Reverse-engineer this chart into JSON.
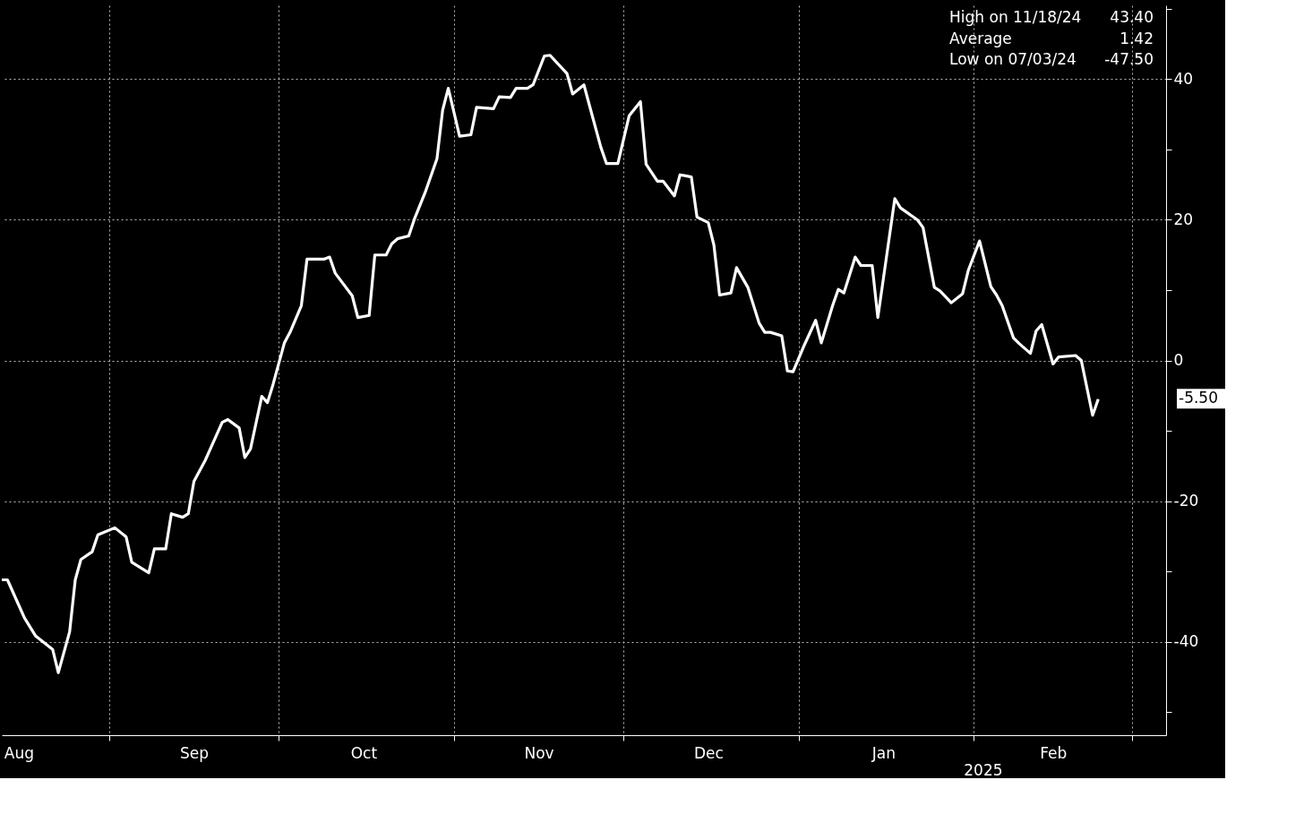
{
  "chart_data": {
    "type": "line",
    "x": [
      "2024-08-13",
      "2024-08-14",
      "2024-08-16",
      "2024-08-17",
      "2024-08-19",
      "2024-08-22",
      "2024-08-23",
      "2024-08-25",
      "2024-08-26",
      "2024-08-27",
      "2024-08-29",
      "2024-08-30",
      "2024-09-02",
      "2024-09-04",
      "2024-09-05",
      "2024-09-08",
      "2024-09-09",
      "2024-09-11",
      "2024-09-12",
      "2024-09-14",
      "2024-09-15",
      "2024-09-16",
      "2024-09-18",
      "2024-09-19",
      "2024-09-21",
      "2024-09-22",
      "2024-09-24",
      "2024-09-25",
      "2024-09-26",
      "2024-09-28",
      "2024-09-29",
      "2024-09-30",
      "2024-10-02",
      "2024-10-03",
      "2024-10-05",
      "2024-10-06",
      "2024-10-09",
      "2024-10-10",
      "2024-10-11",
      "2024-10-14",
      "2024-10-15",
      "2024-10-17",
      "2024-10-18",
      "2024-10-20",
      "2024-10-21",
      "2024-10-22",
      "2024-10-24",
      "2024-10-25",
      "2024-10-27",
      "2024-10-29",
      "2024-10-30",
      "2024-10-31",
      "2024-11-02",
      "2024-11-04",
      "2024-11-05",
      "2024-11-08",
      "2024-11-09",
      "2024-11-11",
      "2024-11-12",
      "2024-11-14",
      "2024-11-15",
      "2024-11-17",
      "2024-11-18",
      "2024-11-21",
      "2024-11-22",
      "2024-11-24",
      "2024-11-25",
      "2024-11-27",
      "2024-11-28",
      "2024-11-30",
      "2024-12-02",
      "2024-12-04",
      "2024-12-05",
      "2024-12-07",
      "2024-12-08",
      "2024-12-10",
      "2024-12-11",
      "2024-12-13",
      "2024-12-14",
      "2024-12-16",
      "2024-12-17",
      "2024-12-18",
      "2024-12-20",
      "2024-12-21",
      "2024-12-23",
      "2024-12-25",
      "2024-12-26",
      "2024-12-27",
      "2024-12-29",
      "2024-12-30",
      "2024-12-31",
      "2025-01-02",
      "2025-01-04",
      "2025-01-05",
      "2025-01-07",
      "2025-01-08",
      "2025-01-09",
      "2025-01-11",
      "2025-01-12",
      "2025-01-14",
      "2025-01-15",
      "2025-01-18",
      "2025-01-19",
      "2025-01-22",
      "2025-01-23",
      "2025-01-25",
      "2025-01-26",
      "2025-01-28",
      "2025-01-30",
      "2025-01-31",
      "2025-02-02",
      "2025-02-04",
      "2025-02-05",
      "2025-02-06",
      "2025-02-08",
      "2025-02-09",
      "2025-02-11",
      "2025-02-12",
      "2025-02-13",
      "2025-02-15",
      "2025-02-16",
      "2025-02-19",
      "2025-02-20",
      "2025-02-22",
      "2025-02-23"
    ],
    "series": [
      {
        "color": "#ffffff",
        "values": [
          -31.2,
          -31.2,
          -34.8,
          -36.6,
          -39.2,
          -41.1,
          -44.4,
          -38.6,
          -31.2,
          -28.3,
          -27.2,
          -24.8,
          -23.8,
          -25.1,
          -28.7,
          -30.2,
          -26.8,
          -26.8,
          -21.8,
          -22.3,
          -21.8,
          -17.2,
          -14.2,
          -12.4,
          -8.8,
          -8.4,
          -9.6,
          -13.8,
          -12.6,
          -5.1,
          -6.0,
          -3.4,
          2.5,
          4.0,
          7.8,
          14.4,
          14.4,
          14.7,
          12.4,
          9.2,
          6.1,
          6.4,
          15.0,
          15.0,
          16.6,
          17.3,
          17.7,
          20.1,
          24.1,
          28.7,
          35.6,
          38.7,
          31.9,
          32.1,
          36.0,
          35.8,
          37.5,
          37.4,
          38.7,
          38.7,
          39.2,
          43.3,
          43.4,
          40.8,
          37.9,
          39.2,
          36.2,
          30.3,
          28.0,
          28.0,
          34.8,
          36.8,
          27.9,
          25.5,
          25.5,
          23.4,
          26.4,
          26.1,
          20.4,
          19.6,
          16.4,
          9.3,
          9.6,
          13.2,
          10.4,
          5.3,
          4.0,
          4.0,
          3.5,
          -1.5,
          -1.6,
          2.2,
          5.7,
          2.5,
          7.8,
          10.1,
          9.6,
          14.7,
          13.5,
          13.5,
          6.1,
          23.0,
          21.7,
          20.0,
          18.9,
          10.4,
          9.9,
          8.2,
          9.5,
          12.8,
          17.0,
          10.5,
          9.3,
          7.8,
          3.2,
          2.4,
          1.0,
          4.2,
          5.1,
          -0.5,
          0.5,
          0.7,
          0.0,
          -7.8,
          -5.5
        ]
      }
    ],
    "xlim": [
      "2024-08-13",
      "2025-03-07"
    ],
    "xticks": [
      {
        "value": "2024-08-16",
        "label": "Aug"
      },
      {
        "value": "2024-09-01",
        "label": null
      },
      {
        "value": "2024-09-16",
        "label": "Sep"
      },
      {
        "value": "2024-10-01",
        "label": null
      },
      {
        "value": "2024-10-16",
        "label": "Oct"
      },
      {
        "value": "2024-11-01",
        "label": null
      },
      {
        "value": "2024-11-16",
        "label": "Nov"
      },
      {
        "value": "2024-12-01",
        "label": null
      },
      {
        "value": "2024-12-16",
        "label": "Dec"
      },
      {
        "value": "2025-01-01",
        "label": null
      },
      {
        "value": "2025-01-16",
        "label": "Jan"
      },
      {
        "value": "2025-02-01",
        "label": null
      },
      {
        "value": "2025-02-15",
        "label": "Feb"
      },
      {
        "value": "2025-03-01",
        "label": null
      }
    ],
    "ylim": [
      -53.3,
      50.5
    ],
    "yticks": [
      {
        "value": 50,
        "label": null
      },
      40,
      {
        "value": 30,
        "label": null
      },
      20,
      {
        "value": 10,
        "label": null
      },
      0,
      {
        "value": -10,
        "label": null
      },
      -20,
      {
        "value": -30,
        "label": null
      },
      -40,
      {
        "value": -50,
        "label": null
      }
    ],
    "grid": true,
    "annotations": [
      "High on 11/18/24",
      "43.40",
      "Average",
      "1.42",
      "Low on 07/03/24",
      "-47.50",
      "2025",
      "-5.50"
    ]
  }
}
